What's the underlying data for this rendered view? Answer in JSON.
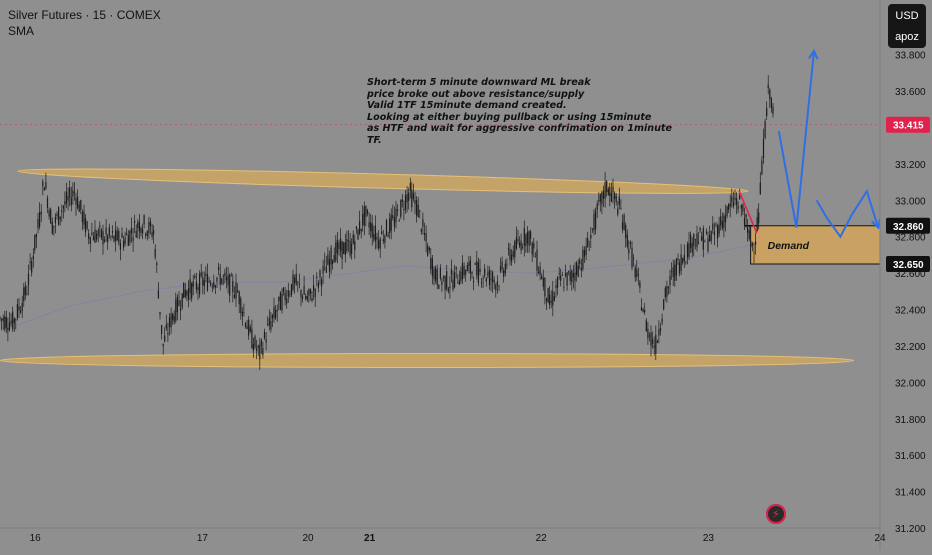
{
  "header": {
    "symbol_line": "Silver Futures · 15 · COMEX",
    "indicator": "SMA"
  },
  "currency_button": {
    "top": "USD",
    "bottom": "apoz"
  },
  "annotation_text": "Short-term 5 minute downward ML break\nprice broke out above resistance/supply\nValid 1TF 15minute demand created.\nLooking at either buying pullback or using 15minute\nas HTF and wait for aggressive confrimation on 1minute TF.",
  "zone_label": "Demand",
  "colors": {
    "background": "#8f8f8f",
    "candles": "#1b1b1b",
    "channel": "#d4a95a",
    "demand_zone": "#c9a263",
    "projection": "#2f6fe6",
    "break_line": "#e0224c",
    "price_badge": "#e0224c",
    "sma": "#7a7fa8"
  },
  "icons": {
    "alert": "lightning-icon"
  },
  "chart_data": {
    "type": "candlestick",
    "title": "Silver Futures · 15 · COMEX",
    "ylim": [
      31.2,
      34.1
    ],
    "xlim": [
      0,
      100
    ],
    "y_ticks": [
      "33.800",
      "33.600",
      "33.400",
      "33.200",
      "33.000",
      "32.800",
      "32.600",
      "32.400",
      "32.200",
      "32.000",
      "31.800",
      "31.600",
      "31.400",
      "31.200"
    ],
    "y_tick_values": [
      33.8,
      33.6,
      33.4,
      33.2,
      33.0,
      32.8,
      32.6,
      32.4,
      32.2,
      32.0,
      31.8,
      31.6,
      31.4,
      31.2
    ],
    "x_ticks": [
      {
        "label": "16",
        "x": 4,
        "bold": false
      },
      {
        "label": "17",
        "x": 23,
        "bold": false
      },
      {
        "label": "20",
        "x": 35,
        "bold": false
      },
      {
        "label": "21",
        "x": 42,
        "bold": true
      },
      {
        "label": "22",
        "x": 61.5,
        "bold": false
      },
      {
        "label": "23",
        "x": 80.5,
        "bold": false
      },
      {
        "label": "24",
        "x": 100,
        "bold": false
      }
    ],
    "price_key": [
      [
        0,
        32.35
      ],
      [
        1.5,
        32.33
      ],
      [
        3,
        32.5
      ],
      [
        4.5,
        32.9
      ],
      [
        5,
        33.12
      ],
      [
        6,
        32.85
      ],
      [
        7,
        32.95
      ],
      [
        8.5,
        33.05
      ],
      [
        10,
        32.82
      ],
      [
        12,
        32.8
      ],
      [
        14,
        32.78
      ],
      [
        16,
        32.88
      ],
      [
        17.5,
        32.82
      ],
      [
        18.5,
        32.2
      ],
      [
        19.5,
        32.35
      ],
      [
        21,
        32.5
      ],
      [
        23,
        32.55
      ],
      [
        25,
        32.58
      ],
      [
        27,
        32.5
      ],
      [
        28.5,
        32.25
      ],
      [
        29.5,
        32.15
      ],
      [
        30.5,
        32.3
      ],
      [
        32,
        32.45
      ],
      [
        33.5,
        32.55
      ],
      [
        35,
        32.45
      ],
      [
        36.5,
        32.58
      ],
      [
        38,
        32.72
      ],
      [
        40,
        32.75
      ],
      [
        41.5,
        32.92
      ],
      [
        43,
        32.78
      ],
      [
        45,
        32.9
      ],
      [
        46.5,
        33.05
      ],
      [
        47.5,
        32.95
      ],
      [
        48.5,
        32.75
      ],
      [
        49.5,
        32.58
      ],
      [
        51,
        32.55
      ],
      [
        53,
        32.62
      ],
      [
        55,
        32.6
      ],
      [
        56.5,
        32.55
      ],
      [
        58,
        32.7
      ],
      [
        60,
        32.82
      ],
      [
        61.5,
        32.6
      ],
      [
        62.5,
        32.42
      ],
      [
        63.5,
        32.55
      ],
      [
        65,
        32.58
      ],
      [
        66.5,
        32.7
      ],
      [
        68,
        32.95
      ],
      [
        69,
        33.08
      ],
      [
        70.5,
        32.95
      ],
      [
        71.5,
        32.75
      ],
      [
        72.5,
        32.55
      ],
      [
        73.5,
        32.3
      ],
      [
        74.5,
        32.2
      ],
      [
        75.5,
        32.45
      ],
      [
        76.5,
        32.6
      ],
      [
        78,
        32.72
      ],
      [
        79,
        32.8
      ],
      [
        80.5,
        32.78
      ],
      [
        82,
        32.88
      ],
      [
        83.5,
        33.0
      ],
      [
        84.5,
        32.95
      ],
      [
        85,
        32.8
      ],
      [
        85.6,
        32.75
      ],
      [
        86.2,
        32.9
      ],
      [
        86.7,
        33.25
      ],
      [
        87.1,
        33.5
      ],
      [
        87.4,
        33.62
      ],
      [
        87.7,
        33.55
      ],
      [
        88,
        33.35
      ]
    ],
    "sma_key": [
      [
        0,
        32.28
      ],
      [
        8,
        32.42
      ],
      [
        16,
        32.5
      ],
      [
        24,
        32.55
      ],
      [
        32,
        32.55
      ],
      [
        40,
        32.6
      ],
      [
        46,
        32.64
      ],
      [
        52,
        32.62
      ],
      [
        60,
        32.6
      ],
      [
        66,
        32.62
      ],
      [
        72,
        32.65
      ],
      [
        78,
        32.68
      ],
      [
        82,
        32.72
      ],
      [
        86,
        32.76
      ]
    ],
    "upper_channel": {
      "x1": 2,
      "y1": 33.16,
      "x2": 85,
      "y2": 33.05
    },
    "lower_channel": {
      "x1": 0,
      "y1": 32.12,
      "x2": 97,
      "y2": 32.12
    },
    "demand_zone": {
      "x1": 85.3,
      "x2": 100,
      "top": 32.86,
      "bottom": 32.65,
      "label": "Demand"
    },
    "break_line": [
      [
        84,
        33.05
      ],
      [
        86,
        32.82
      ]
    ],
    "projection_path_1": [
      [
        88.5,
        33.38
      ],
      [
        90.5,
        32.85
      ],
      [
        92.5,
        33.82
      ]
    ],
    "projection_path_2": [
      [
        92.8,
        33.0
      ],
      [
        94,
        32.9
      ],
      [
        95.5,
        32.8
      ],
      [
        96.8,
        32.92
      ],
      [
        98.5,
        33.05
      ],
      [
        99.8,
        32.85
      ]
    ],
    "horizontal_line": {
      "y": 33.415
    },
    "price_labels": [
      {
        "value": "33.415",
        "y": 33.415,
        "style": "red"
      },
      {
        "value": "32.860",
        "y": 32.86,
        "style": "black"
      },
      {
        "value": "32.650",
        "y": 32.65,
        "style": "black"
      }
    ]
  }
}
